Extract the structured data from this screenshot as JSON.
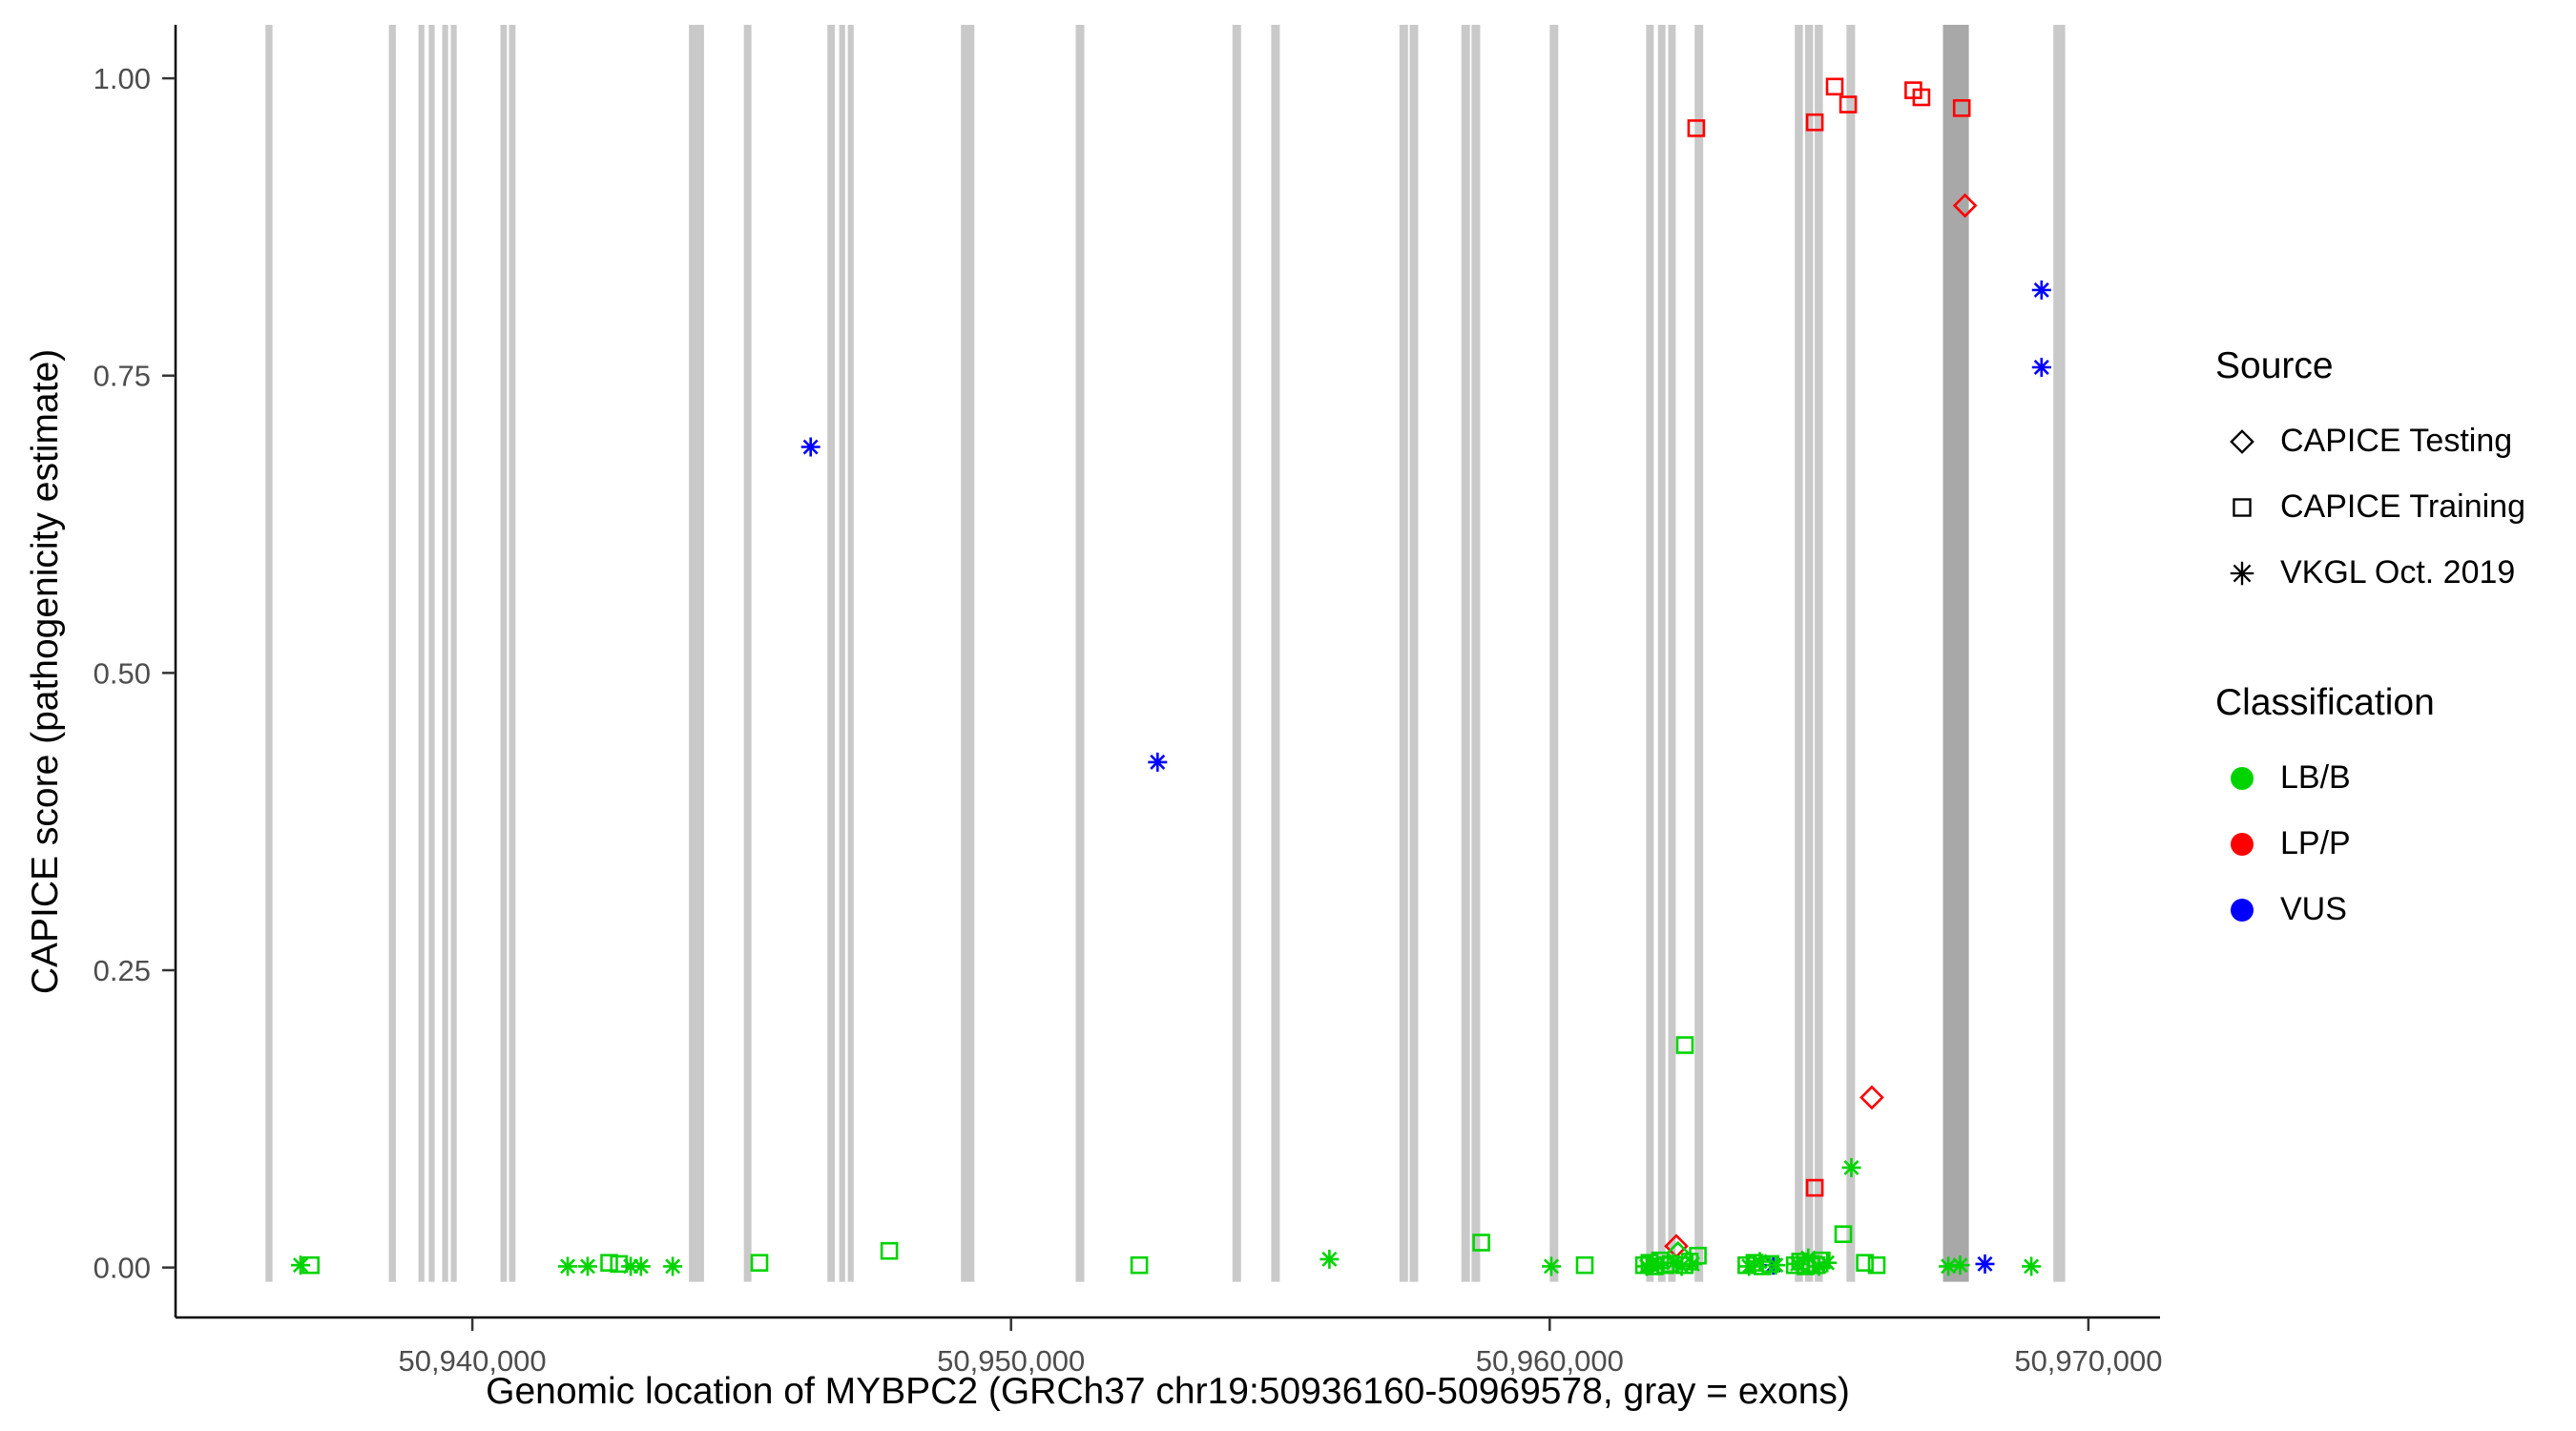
{
  "chart_data": {
    "type": "scatter",
    "title": "",
    "xlabel": "Genomic location of MYBPC2 (GRCh37 chr19:50936160-50969578, gray = exons)",
    "ylabel": "CAPICE score (pathogenicity estimate)",
    "x_domain": [
      50934490,
      50971330
    ],
    "y_domain": [
      -0.042,
      1.045
    ],
    "x_ticks": [
      {
        "value": 50940000,
        "label": "50,940,000"
      },
      {
        "value": 50950000,
        "label": "50,950,000"
      },
      {
        "value": 50960000,
        "label": "50,960,000"
      },
      {
        "value": 50970000,
        "label": "50,970,000"
      }
    ],
    "y_ticks": [
      {
        "value": 0.0,
        "label": "0.00"
      },
      {
        "value": 0.25,
        "label": "0.25"
      },
      {
        "value": 0.5,
        "label": "0.50"
      },
      {
        "value": 0.75,
        "label": "0.75"
      },
      {
        "value": 1.0,
        "label": "1.00"
      }
    ],
    "grid": false,
    "legend_position": "right",
    "exon_color": "#c9c9c9",
    "exon_color_dark": "#a8a8a8",
    "exons": [
      [
        50936160,
        50936290
      ],
      [
        50938450,
        50938580
      ],
      [
        50939000,
        50939110
      ],
      [
        50939190,
        50939300
      ],
      [
        50939440,
        50939550
      ],
      [
        50939600,
        50939710
      ],
      [
        50940520,
        50940640
      ],
      [
        50940680,
        50940800
      ],
      [
        50944020,
        50944300
      ],
      [
        50945040,
        50945180
      ],
      [
        50946590,
        50946730
      ],
      [
        50946810,
        50946920
      ],
      [
        50946970,
        50947080
      ],
      [
        50949070,
        50949320
      ],
      [
        50951200,
        50951360
      ],
      [
        50954110,
        50954270
      ],
      [
        50954830,
        50954990
      ],
      [
        50957210,
        50957370
      ],
      [
        50957400,
        50957560
      ],
      [
        50958360,
        50958520
      ],
      [
        50958550,
        50958710
      ],
      [
        50960000,
        50960160
      ],
      [
        50961790,
        50961930
      ],
      [
        50962010,
        50962150
      ],
      [
        50962200,
        50962340
      ],
      [
        50962690,
        50962850
      ],
      [
        50964550,
        50964700
      ],
      [
        50964740,
        50964890
      ],
      [
        50964920,
        50965070
      ],
      [
        50965510,
        50965670
      ],
      [
        50967300,
        50967780,
        "dark"
      ],
      [
        50969350,
        50969570
      ]
    ],
    "points": [
      {
        "x": 50946280,
        "y": 0.69,
        "source": "VKGL Oct. 2019",
        "class": "VUS"
      },
      {
        "x": 50952720,
        "y": 0.425,
        "source": "VKGL Oct. 2019",
        "class": "VUS"
      },
      {
        "x": 50969130,
        "y": 0.822,
        "source": "VKGL Oct. 2019",
        "class": "VUS"
      },
      {
        "x": 50969130,
        "y": 0.757,
        "source": "VKGL Oct. 2019",
        "class": "VUS"
      },
      {
        "x": 50968080,
        "y": 0.003,
        "source": "VKGL Oct. 2019",
        "class": "VUS"
      },
      {
        "x": 50964150,
        "y": 0.002,
        "source": "VKGL Oct. 2019",
        "class": "VUS"
      },
      {
        "x": 50962720,
        "y": 0.958,
        "source": "CAPICE Training",
        "class": "LP/P"
      },
      {
        "x": 50964920,
        "y": 0.963,
        "source": "CAPICE Training",
        "class": "LP/P"
      },
      {
        "x": 50965290,
        "y": 0.993,
        "source": "CAPICE Training",
        "class": "LP/P"
      },
      {
        "x": 50965540,
        "y": 0.978,
        "source": "CAPICE Training",
        "class": "LP/P"
      },
      {
        "x": 50966750,
        "y": 0.99,
        "source": "CAPICE Training",
        "class": "LP/P"
      },
      {
        "x": 50966900,
        "y": 0.984,
        "source": "CAPICE Training",
        "class": "LP/P"
      },
      {
        "x": 50967650,
        "y": 0.975,
        "source": "CAPICE Training",
        "class": "LP/P"
      },
      {
        "x": 50967710,
        "y": 0.893,
        "source": "CAPICE Testing",
        "class": "LP/P"
      },
      {
        "x": 50965980,
        "y": 0.143,
        "source": "CAPICE Testing",
        "class": "LP/P"
      },
      {
        "x": 50964920,
        "y": 0.067,
        "source": "CAPICE Training",
        "class": "LP/P"
      },
      {
        "x": 50962350,
        "y": 0.018,
        "source": "CAPICE Testing",
        "class": "LP/P"
      },
      {
        "x": 50936810,
        "y": 0.002,
        "source": "VKGL Oct. 2019",
        "class": "LB/B"
      },
      {
        "x": 50937000,
        "y": 0.002,
        "source": "CAPICE Training",
        "class": "LB/B"
      },
      {
        "x": 50941770,
        "y": 0.001,
        "source": "VKGL Oct. 2019",
        "class": "LB/B"
      },
      {
        "x": 50942140,
        "y": 0.001,
        "source": "VKGL Oct. 2019",
        "class": "LB/B"
      },
      {
        "x": 50942540,
        "y": 0.004,
        "source": "CAPICE Training",
        "class": "LB/B"
      },
      {
        "x": 50942720,
        "y": 0.003,
        "source": "CAPICE Training",
        "class": "LB/B"
      },
      {
        "x": 50942940,
        "y": 0.001,
        "source": "VKGL Oct. 2019",
        "class": "LB/B"
      },
      {
        "x": 50943130,
        "y": 0.001,
        "source": "VKGL Oct. 2019",
        "class": "LB/B"
      },
      {
        "x": 50943720,
        "y": 0.001,
        "source": "VKGL Oct. 2019",
        "class": "LB/B"
      },
      {
        "x": 50945330,
        "y": 0.004,
        "source": "CAPICE Training",
        "class": "LB/B"
      },
      {
        "x": 50947740,
        "y": 0.014,
        "source": "CAPICE Training",
        "class": "LB/B"
      },
      {
        "x": 50952380,
        "y": 0.002,
        "source": "CAPICE Training",
        "class": "LB/B"
      },
      {
        "x": 50955910,
        "y": 0.007,
        "source": "VKGL Oct. 2019",
        "class": "LB/B"
      },
      {
        "x": 50958730,
        "y": 0.021,
        "source": "CAPICE Training",
        "class": "LB/B"
      },
      {
        "x": 50960030,
        "y": 0.001,
        "source": "VKGL Oct. 2019",
        "class": "LB/B"
      },
      {
        "x": 50960650,
        "y": 0.002,
        "source": "CAPICE Training",
        "class": "LB/B"
      },
      {
        "x": 50961750,
        "y": 0.002,
        "source": "CAPICE Training",
        "class": "LB/B"
      },
      {
        "x": 50961800,
        "y": 0.001,
        "source": "VKGL Oct. 2019",
        "class": "LB/B"
      },
      {
        "x": 50961850,
        "y": 0.004,
        "source": "CAPICE Training",
        "class": "LB/B"
      },
      {
        "x": 50961900,
        "y": 0.003,
        "source": "VKGL Oct. 2019",
        "class": "LB/B"
      },
      {
        "x": 50961950,
        "y": 0.001,
        "source": "CAPICE Training",
        "class": "LB/B"
      },
      {
        "x": 50962000,
        "y": 0.002,
        "source": "VKGL Oct. 2019",
        "class": "LB/B"
      },
      {
        "x": 50962050,
        "y": 0.006,
        "source": "CAPICE Training",
        "class": "LB/B"
      },
      {
        "x": 50962150,
        "y": 0.002,
        "source": "CAPICE Training",
        "class": "LB/B"
      },
      {
        "x": 50962250,
        "y": 0.003,
        "source": "CAPICE Training",
        "class": "LB/B"
      },
      {
        "x": 50962300,
        "y": 0.004,
        "source": "VKGL Oct. 2019",
        "class": "LB/B"
      },
      {
        "x": 50962380,
        "y": 0.012,
        "source": "CAPICE Testing",
        "class": "LB/B"
      },
      {
        "x": 50962450,
        "y": 0.001,
        "source": "VKGL Oct. 2019",
        "class": "LB/B"
      },
      {
        "x": 50962500,
        "y": 0.002,
        "source": "CAPICE Training",
        "class": "LB/B"
      },
      {
        "x": 50962510,
        "y": 0.187,
        "source": "CAPICE Training",
        "class": "LB/B"
      },
      {
        "x": 50962600,
        "y": 0.005,
        "source": "CAPICE Training",
        "class": "LB/B"
      },
      {
        "x": 50962650,
        "y": 0.003,
        "source": "VKGL Oct. 2019",
        "class": "LB/B"
      },
      {
        "x": 50962750,
        "y": 0.01,
        "source": "CAPICE Training",
        "class": "LB/B"
      },
      {
        "x": 50963650,
        "y": 0.002,
        "source": "CAPICE Training",
        "class": "LB/B"
      },
      {
        "x": 50963700,
        "y": 0.001,
        "source": "VKGL Oct. 2019",
        "class": "LB/B"
      },
      {
        "x": 50963800,
        "y": 0.004,
        "source": "CAPICE Training",
        "class": "LB/B"
      },
      {
        "x": 50963900,
        "y": 0.005,
        "source": "VKGL Oct. 2019",
        "class": "LB/B"
      },
      {
        "x": 50963950,
        "y": 0.001,
        "source": "CAPICE Training",
        "class": "LB/B"
      },
      {
        "x": 50964100,
        "y": 0.003,
        "source": "CAPICE Training",
        "class": "LB/B"
      },
      {
        "x": 50964200,
        "y": 0.002,
        "source": "VKGL Oct. 2019",
        "class": "LB/B"
      },
      {
        "x": 50964550,
        "y": 0.002,
        "source": "CAPICE Training",
        "class": "LB/B"
      },
      {
        "x": 50964600,
        "y": 0.003,
        "source": "VKGL Oct. 2019",
        "class": "LB/B"
      },
      {
        "x": 50964650,
        "y": 0.005,
        "source": "CAPICE Training",
        "class": "LB/B"
      },
      {
        "x": 50964750,
        "y": 0.001,
        "source": "CAPICE Training",
        "class": "LB/B"
      },
      {
        "x": 50964800,
        "y": 0.008,
        "source": "VKGL Oct. 2019",
        "class": "LB/B"
      },
      {
        "x": 50964850,
        "y": 0.003,
        "source": "CAPICE Training",
        "class": "LB/B"
      },
      {
        "x": 50964950,
        "y": 0.002,
        "source": "CAPICE Training",
        "class": "LB/B"
      },
      {
        "x": 50965000,
        "y": 0.001,
        "source": "VKGL Oct. 2019",
        "class": "LB/B"
      },
      {
        "x": 50965050,
        "y": 0.006,
        "source": "CAPICE Training",
        "class": "LB/B"
      },
      {
        "x": 50965150,
        "y": 0.004,
        "source": "VKGL Oct. 2019",
        "class": "LB/B"
      },
      {
        "x": 50965450,
        "y": 0.028,
        "source": "CAPICE Training",
        "class": "LB/B"
      },
      {
        "x": 50965600,
        "y": 0.084,
        "source": "VKGL Oct. 2019",
        "class": "LB/B"
      },
      {
        "x": 50965850,
        "y": 0.004,
        "source": "CAPICE Training",
        "class": "LB/B"
      },
      {
        "x": 50966070,
        "y": 0.002,
        "source": "CAPICE Training",
        "class": "LB/B"
      },
      {
        "x": 50967400,
        "y": 0.001,
        "source": "VKGL Oct. 2019",
        "class": "LB/B"
      },
      {
        "x": 50967620,
        "y": 0.002,
        "source": "VKGL Oct. 2019",
        "class": "LB/B"
      },
      {
        "x": 50968940,
        "y": 0.001,
        "source": "VKGL Oct. 2019",
        "class": "LB/B"
      }
    ]
  },
  "colors": {
    "LB/B": "#00d400",
    "LP/P": "#ff0000",
    "VUS": "#0000ff",
    "axis_line": "#000000",
    "tick_label": "#4d4d4d"
  },
  "legend": {
    "source_title": "Source",
    "source_items": [
      {
        "label": "CAPICE Testing",
        "shape": "diamond"
      },
      {
        "label": "CAPICE Training",
        "shape": "square"
      },
      {
        "label": "VKGL Oct. 2019",
        "shape": "asterisk"
      }
    ],
    "classification_title": "Classification",
    "classification_items": [
      {
        "label": "LB/B",
        "color": "#00d400"
      },
      {
        "label": "LP/P",
        "color": "#ff0000"
      },
      {
        "label": "VUS",
        "color": "#0000ff"
      }
    ]
  }
}
